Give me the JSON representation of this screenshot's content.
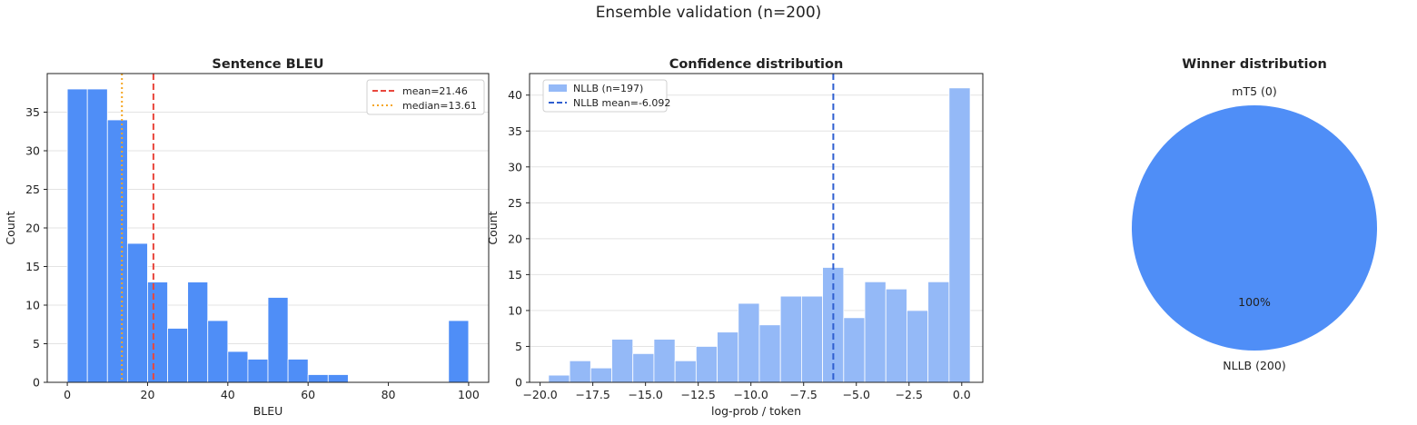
{
  "figure": {
    "title": "Ensemble validation (n=200)"
  },
  "chart_data": [
    {
      "type": "bar",
      "title": "Sentence BLEU",
      "xlabel": "BLEU",
      "ylabel": "Count",
      "xlim": [
        -5,
        105
      ],
      "ylim": [
        0,
        40
      ],
      "xticks": [
        0,
        20,
        40,
        60,
        80,
        100
      ],
      "yticks": [
        0,
        5,
        10,
        15,
        20,
        25,
        30,
        35
      ],
      "bin_edges": [
        0,
        5,
        10,
        15,
        20,
        25,
        30,
        35,
        40,
        45,
        50,
        55,
        60,
        65,
        70,
        75,
        80,
        85,
        90,
        95,
        100
      ],
      "counts": [
        38,
        38,
        34,
        18,
        13,
        7,
        13,
        8,
        4,
        3,
        11,
        3,
        1,
        1,
        0,
        0,
        0,
        0,
        0,
        8
      ],
      "color": "#4f8ef7",
      "grid": "y",
      "lines": [
        {
          "label": "mean=21.46",
          "x": 21.46,
          "color": "#e8473d",
          "style": "dashed"
        },
        {
          "label": "median=13.61",
          "x": 13.61,
          "color": "#f5a623",
          "style": "dotted"
        }
      ],
      "legend": "top-right"
    },
    {
      "type": "bar",
      "title": "Confidence distribution",
      "xlabel": "log-prob / token",
      "ylabel": "Count",
      "xlim": [
        -20.5,
        1
      ],
      "ylim": [
        0,
        43
      ],
      "xticks": [
        -20,
        -17.5,
        -15,
        -12.5,
        -10,
        -7.5,
        -5,
        -2.5,
        0
      ],
      "xtick_labels": [
        "−20.0",
        "−17.5",
        "−15.0",
        "−12.5",
        "−10.0",
        "−7.5",
        "−5.0",
        "−2.5",
        "0.0"
      ],
      "yticks": [
        0,
        5,
        10,
        15,
        20,
        25,
        30,
        35,
        40
      ],
      "bin_edges": [
        -19.6,
        -18.6,
        -17.6,
        -16.6,
        -15.6,
        -14.6,
        -13.6,
        -12.6,
        -11.6,
        -10.6,
        -9.6,
        -8.6,
        -7.6,
        -6.6,
        -5.6,
        -4.6,
        -3.6,
        -2.6,
        -1.6,
        -0.6,
        0.4
      ],
      "counts": [
        1,
        3,
        2,
        6,
        4,
        6,
        3,
        5,
        7,
        11,
        8,
        12,
        12,
        16,
        9,
        14,
        13,
        10,
        14,
        41
      ],
      "color": "#94b9f7",
      "grid": "y",
      "series_label": "NLLB (n=197)",
      "lines": [
        {
          "label": "NLLB mean=-6.092",
          "x": -6.092,
          "color": "#2f5fd0",
          "style": "dashed"
        }
      ],
      "legend": "top-left"
    },
    {
      "type": "pie",
      "title": "Winner distribution",
      "slices": [
        {
          "label": "mT5 (0)",
          "value": 0,
          "pct": "0%",
          "color": "#f5a623"
        },
        {
          "label": "NLLB (200)",
          "value": 200,
          "pct": "100%",
          "color": "#4f8ef7"
        }
      ]
    }
  ]
}
